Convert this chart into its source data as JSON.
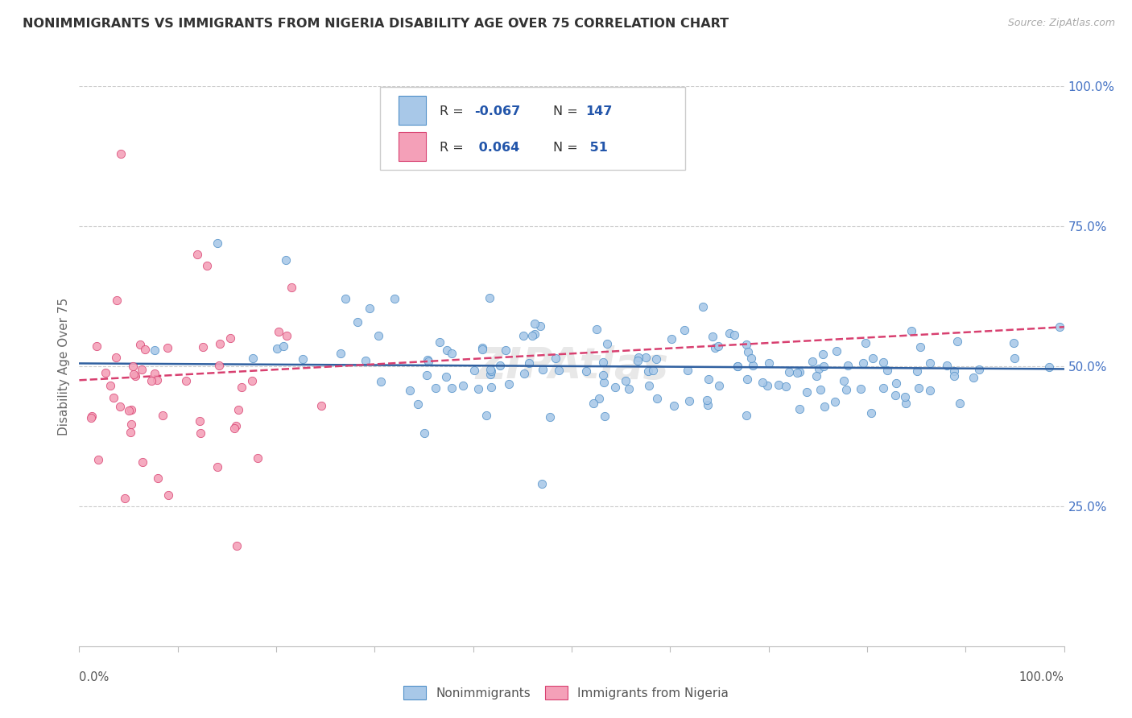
{
  "title": "NONIMMIGRANTS VS IMMIGRANTS FROM NIGERIA DISABILITY AGE OVER 75 CORRELATION CHART",
  "source": "Source: ZipAtlas.com",
  "ylabel": "Disability Age Over 75",
  "legend_blue_R": "R = -0.067",
  "legend_blue_N": "N = 147",
  "legend_pink_R": "R =  0.064",
  "legend_pink_N": "N =  51",
  "legend_label_blue": "Nonimmigrants",
  "legend_label_pink": "Immigrants from Nigeria",
  "blue_fill": "#A8C8E8",
  "blue_edge": "#5090C8",
  "pink_fill": "#F4A0B8",
  "pink_edge": "#D84070",
  "blue_line": "#3060A0",
  "pink_line": "#D84070",
  "background_color": "#FFFFFF",
  "grid_color": "#CCCCCC",
  "right_axis_color": "#4472C4",
  "watermark_color": "#E8E8E8",
  "seed": 123
}
